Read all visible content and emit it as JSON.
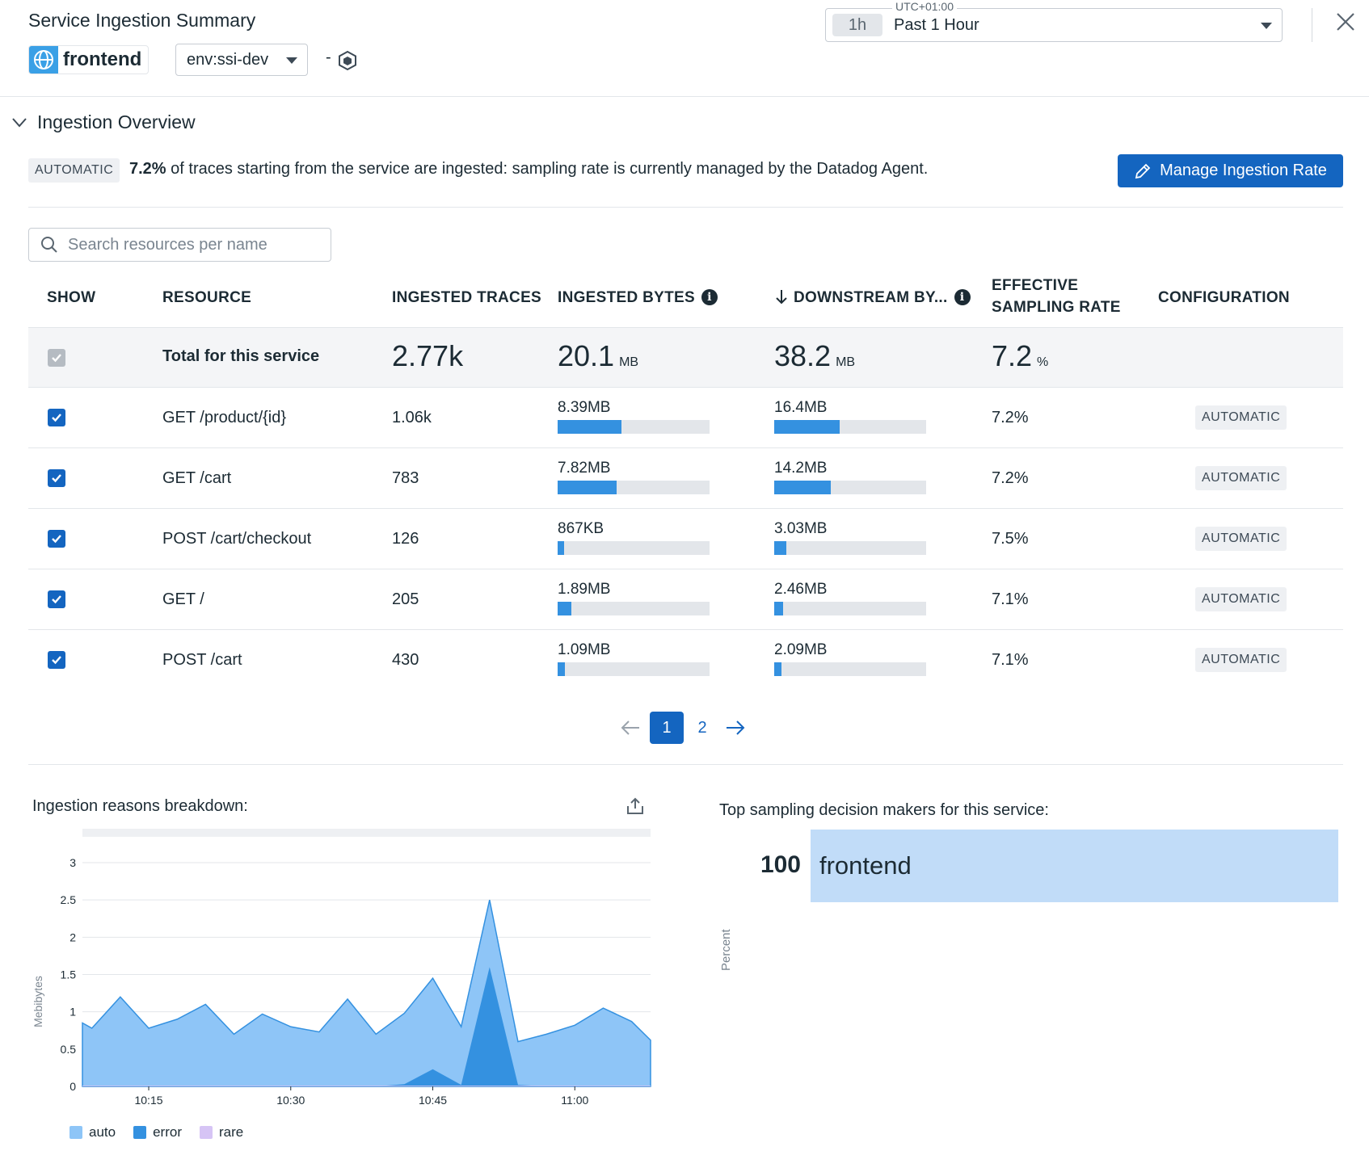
{
  "header": {
    "title": "Service Ingestion Summary",
    "service_name": "frontend",
    "env_value": "env:ssi-dev",
    "dash": "-",
    "timezone": "UTC+01:00",
    "time_chip": "1h",
    "time_label": "Past 1 Hour"
  },
  "overview": {
    "section_title": "Ingestion Overview",
    "badge": "AUTOMATIC",
    "rate": "7.2%",
    "text": "of traces starting from the service are ingested: sampling rate is currently managed by the Datadog Agent.",
    "manage_button": "Manage Ingestion Rate"
  },
  "search": {
    "placeholder": "Search resources per name"
  },
  "table": {
    "headers": {
      "show": "SHOW",
      "resource": "RESOURCE",
      "traces": "INGESTED TRACES",
      "bytes": "INGESTED BYTES",
      "downstream": "DOWNSTREAM BY...",
      "effective_1": "EFFECTIVE",
      "effective_2": "SAMPLING RATE",
      "configuration": "CONFIGURATION"
    },
    "total": {
      "label": "Total for this service",
      "traces": "2.77k",
      "bytes": "20.1",
      "bytes_unit": "MB",
      "downstream": "38.2",
      "downstream_unit": "MB",
      "rate": "7.2",
      "rate_unit": "%"
    },
    "rows": [
      {
        "resource": "GET /product/{id}",
        "traces": "1.06k",
        "bytes": "8.39MB",
        "bytes_fraction": 0.42,
        "downstream": "16.4MB",
        "downstream_fraction": 0.43,
        "rate": "7.2%",
        "config": "AUTOMATIC"
      },
      {
        "resource": "GET /cart",
        "traces": "783",
        "bytes": "7.82MB",
        "bytes_fraction": 0.39,
        "downstream": "14.2MB",
        "downstream_fraction": 0.37,
        "rate": "7.2%",
        "config": "AUTOMATIC"
      },
      {
        "resource": "POST /cart/checkout",
        "traces": "126",
        "bytes": "867KB",
        "bytes_fraction": 0.04,
        "downstream": "3.03MB",
        "downstream_fraction": 0.08,
        "rate": "7.5%",
        "config": "AUTOMATIC"
      },
      {
        "resource": "GET /",
        "traces": "205",
        "bytes": "1.89MB",
        "bytes_fraction": 0.09,
        "downstream": "2.46MB",
        "downstream_fraction": 0.06,
        "rate": "7.1%",
        "config": "AUTOMATIC"
      },
      {
        "resource": "POST /cart",
        "traces": "430",
        "bytes": "1.09MB",
        "bytes_fraction": 0.05,
        "downstream": "2.09MB",
        "downstream_fraction": 0.05,
        "rate": "7.1%",
        "config": "AUTOMATIC"
      }
    ]
  },
  "pagination": {
    "current": "1",
    "next": "2"
  },
  "breakdown": {
    "title": "Ingestion reasons breakdown:"
  },
  "chart_data": {
    "type": "area",
    "title": "Ingestion reasons breakdown:",
    "ylabel": "Mebibytes",
    "xlabel": "",
    "ylim": [
      0,
      3
    ],
    "yticks": [
      "0",
      "0.5",
      "1",
      "1.5",
      "2",
      "2.5",
      "3"
    ],
    "xticks": [
      "10:15",
      "10:30",
      "10:45",
      "11:00"
    ],
    "x": [
      "10:08",
      "10:09",
      "10:12",
      "10:15",
      "10:18",
      "10:21",
      "10:24",
      "10:27",
      "10:30",
      "10:33",
      "10:36",
      "10:39",
      "10:42",
      "10:45",
      "10:48",
      "10:51",
      "10:54",
      "10:57",
      "11:00",
      "11:03",
      "11:06",
      "11:08"
    ],
    "series": [
      {
        "name": "auto",
        "color": "#8ec5f7",
        "values": [
          0.85,
          0.78,
          1.2,
          0.78,
          0.9,
          1.1,
          0.7,
          0.97,
          0.8,
          0.73,
          1.17,
          0.7,
          0.95,
          1.22,
          0.78,
          0.9,
          0.58,
          0.7,
          0.82,
          1.05,
          0.87,
          0.62
        ]
      },
      {
        "name": "error",
        "color": "#3491e0",
        "values": [
          0,
          0,
          0,
          0,
          0,
          0,
          0,
          0,
          0,
          0,
          0,
          0,
          0.03,
          0.23,
          0.02,
          1.6,
          0.02,
          0,
          0,
          0,
          0,
          0
        ]
      },
      {
        "name": "rare",
        "color": "#d6c4f5",
        "values": [
          0,
          0,
          0,
          0,
          0,
          0,
          0,
          0,
          0,
          0,
          0,
          0,
          0,
          0,
          0,
          0,
          0,
          0,
          0,
          0,
          0,
          0
        ]
      }
    ],
    "legend": "bottom-left"
  },
  "top_makers": {
    "title": "Top sampling decision makers for this service:",
    "value": "100",
    "label": "frontend",
    "axis_label": "Percent"
  },
  "colors": {
    "accent": "#1465c0",
    "bar": "#3491e0",
    "track": "#e3e6ea"
  }
}
